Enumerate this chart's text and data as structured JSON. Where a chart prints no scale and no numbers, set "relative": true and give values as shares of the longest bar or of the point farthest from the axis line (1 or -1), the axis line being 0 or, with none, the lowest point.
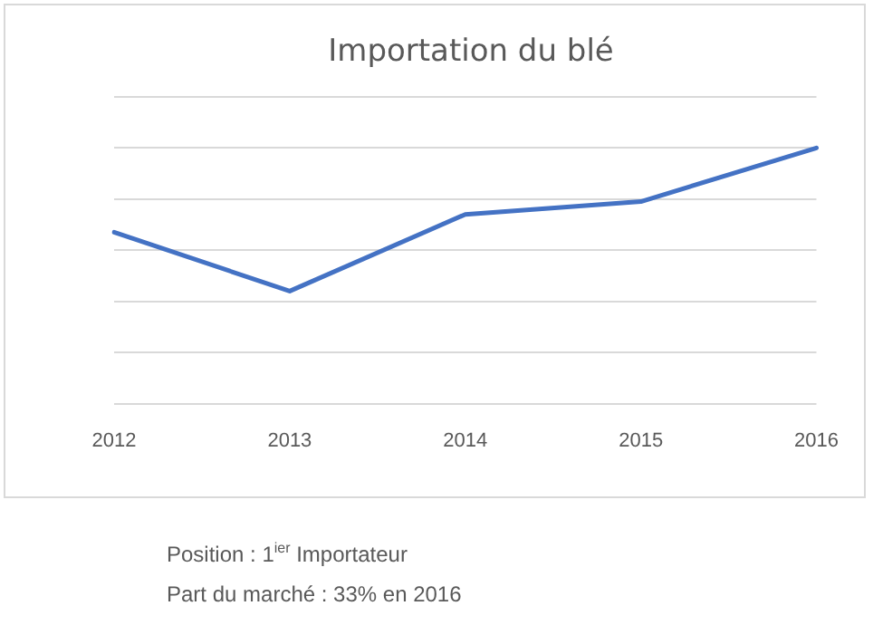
{
  "chart_data": {
    "type": "line",
    "title": "Importation du blé",
    "categories": [
      "2012",
      "2013",
      "2014",
      "2015",
      "2016"
    ],
    "series": [
      {
        "color": "#4472c4",
        "values": [
          0.67,
          0.44,
          0.74,
          0.79,
          1
        ]
      }
    ],
    "relative": true,
    "grid": "y",
    "legend": false,
    "marker": "none",
    "line_style": "solid",
    "annotations": [
      "Position : 1$^{ier}$ Importateur",
      "Part du marché : 33% en 2016"
    ]
  }
}
